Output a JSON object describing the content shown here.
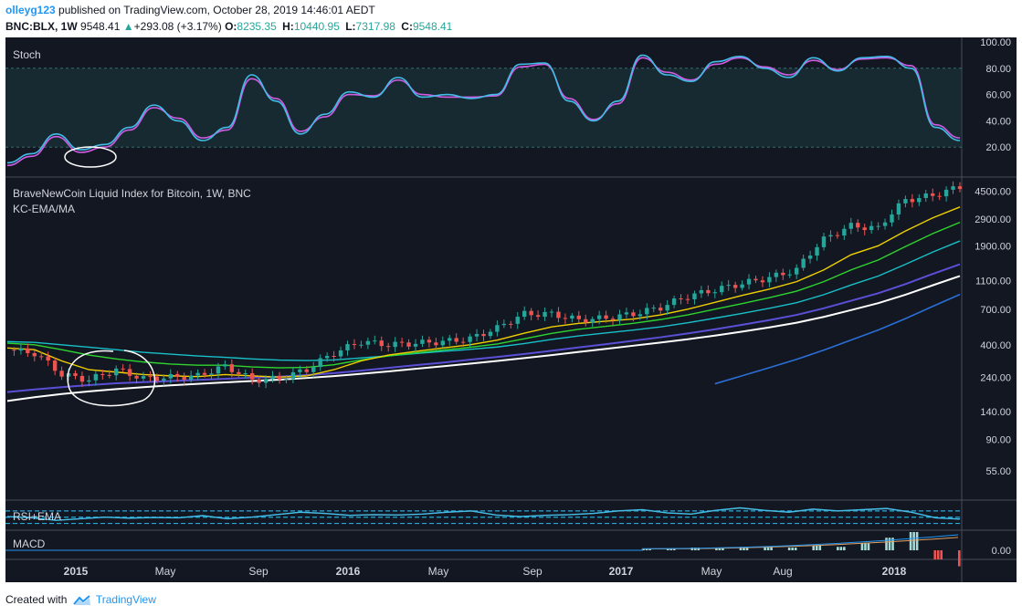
{
  "header": {
    "author": "olleyg123",
    "published_text": "published on TradingView.com, October 28, 2019 14:46:01 AEDT",
    "symbol": "BNC:BLX, 1W",
    "price": "9548.41",
    "change": "+293.08 (+3.17%)",
    "open_label": "O:",
    "open": "8235.35",
    "high_label": "H:",
    "high": "10440.95",
    "low_label": "L:",
    "low": "7317.98",
    "close_label": "C:",
    "close": "9548.41"
  },
  "footer": {
    "created_with": "Created with",
    "brand": "TradingView"
  },
  "colors": {
    "background": "#131722",
    "grid": "#363a45",
    "text": "#d1d4dc",
    "candle_up": "#26a69a",
    "candle_down": "#ef5350",
    "stoch_k": "#42bde8",
    "stoch_d": "#d05ce3",
    "ema_red": "#e53935",
    "ema_yellow": "#f0d000",
    "ema_green": "#2ed52e",
    "ema_teal": "#18c0c8",
    "ma_purple": "#5b4fd6",
    "ma_white": "#ffffff",
    "ma_blue": "#2a6fd6",
    "annotation": "#ffffff"
  },
  "chart_data": [
    {
      "type": "line",
      "pane": "stoch",
      "title": "Stoch",
      "y_axis_ticks": [
        "100.00",
        "80.00",
        "60.00",
        "40.00",
        "20.00"
      ],
      "ylim": [
        0,
        100
      ],
      "bands": [
        20,
        80
      ],
      "x": [
        "Nov 2014",
        "Dec 2014",
        "Jan 2015",
        "Feb 2015",
        "Mar 2015",
        "Apr 2015",
        "May 2015",
        "Jun 2015",
        "Jul 2015",
        "Aug 2015",
        "Sep 2015",
        "Oct 2015",
        "Nov 2015",
        "Dec 2015",
        "Jan 2016",
        "Feb 2016",
        "Mar 2016",
        "Apr 2016",
        "May 2016",
        "Jun 2016",
        "Jul 2016",
        "Aug 2016",
        "Sep 2016",
        "Oct 2016",
        "Nov 2016",
        "Dec 2016",
        "Jan 2017",
        "Feb 2017",
        "Mar 2017",
        "Apr 2017",
        "May 2017",
        "Jun 2017",
        "Jul 2017",
        "Aug 2017",
        "Sep 2017",
        "Oct 2017",
        "Nov 2017",
        "Dec 2017",
        "Jan 2018",
        "Feb 2018"
      ],
      "series": [
        {
          "values": [
            8,
            15,
            30,
            18,
            22,
            35,
            52,
            40,
            25,
            35,
            75,
            55,
            30,
            45,
            62,
            58,
            73,
            58,
            60,
            57,
            60,
            83,
            84,
            55,
            40,
            55,
            90,
            75,
            70,
            85,
            89,
            80,
            73,
            88,
            78,
            88,
            89,
            80,
            35,
            25
          ]
        },
        {
          "values": [
            6,
            13,
            28,
            16,
            20,
            33,
            50,
            42,
            27,
            33,
            72,
            57,
            32,
            43,
            60,
            59,
            71,
            60,
            58,
            58,
            59,
            81,
            83,
            57,
            41,
            53,
            88,
            77,
            71,
            83,
            88,
            81,
            75,
            86,
            79,
            87,
            88,
            82,
            37,
            27
          ]
        }
      ]
    },
    {
      "type": "line",
      "pane": "price",
      "title": "BraveNewCoin Liquid Index for Bitcoin, 1W, BNC",
      "subtitle": "KC-EMA/MA",
      "y_axis_ticks": [
        "4500.00",
        "2900.00",
        "1900.00",
        "1100.00",
        "700.00",
        "400.00",
        "240.00",
        "140.00",
        "90.00",
        "55.00"
      ],
      "scale": "log",
      "ylim": [
        40,
        5000
      ],
      "x": [
        "Nov 2014",
        "Dec 2014",
        "Jan 2015",
        "Feb 2015",
        "Mar 2015",
        "Apr 2015",
        "May 2015",
        "Jun 2015",
        "Jul 2015",
        "Aug 2015",
        "Sep 2015",
        "Oct 2015",
        "Nov 2015",
        "Dec 2015",
        "Jan 2016",
        "Feb 2016",
        "Mar 2016",
        "Apr 2016",
        "May 2016",
        "Jun 2016",
        "Jul 2016",
        "Aug 2016",
        "Sep 2016",
        "Oct 2016",
        "Nov 2016",
        "Dec 2016",
        "Jan 2017",
        "Feb 2017",
        "Mar 2017",
        "Apr 2017",
        "May 2017",
        "Jun 2017",
        "Jul 2017",
        "Aug 2017",
        "Sep 2017",
        "Oct 2017"
      ],
      "series": [
        {
          "values": [
            370,
            350,
            250,
            230,
            270,
            235,
            240,
            245,
            285,
            230,
            235,
            270,
            350,
            420,
            400,
            410,
            420,
            440,
            520,
            650,
            650,
            590,
            610,
            650,
            720,
            860,
            950,
            1050,
            1150,
            1300,
            2100,
            2600,
            2500,
            3900,
            4200,
            4800
          ]
        },
        {
          "values": [
            380,
            370,
            310,
            270,
            260,
            250,
            245,
            242,
            250,
            245,
            240,
            245,
            270,
            310,
            340,
            360,
            380,
            400,
            430,
            480,
            530,
            560,
            580,
            600,
            640,
            700,
            780,
            870,
            960,
            1080,
            1300,
            1650,
            1900,
            2400,
            2950,
            3500
          ]
        },
        {
          "values": [
            410,
            400,
            370,
            340,
            320,
            305,
            295,
            290,
            290,
            282,
            278,
            280,
            292,
            315,
            335,
            352,
            368,
            384,
            405,
            440,
            478,
            510,
            535,
            560,
            595,
            640,
            700,
            765,
            840,
            930,
            1080,
            1300,
            1520,
            1880,
            2300,
            2750
          ]
        },
        {
          "values": [
            420,
            415,
            400,
            385,
            370,
            355,
            345,
            335,
            328,
            320,
            314,
            312,
            315,
            325,
            336,
            348,
            360,
            372,
            386,
            408,
            435,
            460,
            482,
            504,
            530,
            565,
            608,
            655,
            710,
            776,
            880,
            1025,
            1180,
            1420,
            1720,
            2050
          ]
        },
        {
          "values": [
            190,
            198,
            205,
            212,
            218,
            222,
            226,
            230,
            234,
            238,
            242,
            248,
            256,
            266,
            278,
            290,
            302,
            316,
            330,
            346,
            364,
            384,
            404,
            426,
            450,
            478,
            510,
            548,
            590,
            640,
            710,
            800,
            900,
            1040,
            1220,
            1420
          ]
        },
        {
          "values": [
            165,
            175,
            184,
            192,
            199,
            205,
            211,
            216,
            221,
            226,
            231,
            237,
            244,
            253,
            263,
            274,
            285,
            297,
            310,
            324,
            340,
            357,
            375,
            394,
            414,
            436,
            462,
            492,
            526,
            566,
            620,
            690,
            770,
            880,
            1020,
            1180
          ]
        }
      ]
    },
    {
      "type": "line",
      "pane": "rsi",
      "title": "RSI+EMA",
      "series": [
        {
          "values": [
            52,
            48,
            40,
            45,
            50,
            47,
            49,
            48,
            55,
            45,
            50,
            58,
            66,
            62,
            56,
            58,
            57,
            60,
            66,
            70,
            57,
            52,
            56,
            58,
            62,
            70,
            74,
            64,
            60,
            72,
            80,
            72,
            66,
            76,
            70,
            74,
            78,
            66,
            48,
            44
          ]
        }
      ]
    },
    {
      "type": "bar",
      "pane": "macd",
      "title": "MACD",
      "y_axis_ticks": [
        "0.00"
      ],
      "x": [
        "Jan 2017",
        "Feb 2017",
        "Mar 2017",
        "Apr 2017",
        "May 2017",
        "Jun 2017",
        "Jul 2017",
        "Aug 2017",
        "Sep 2017",
        "Oct 2017",
        "Nov 2017",
        "Dec 2017",
        "Jan 2018",
        "Feb 2018"
      ],
      "values": [
        5,
        8,
        12,
        10,
        15,
        18,
        12,
        20,
        15,
        30,
        55,
        80,
        -40,
        -70
      ]
    }
  ],
  "x_axis_ticks": [
    "2015",
    "May",
    "Sep",
    "2016",
    "May",
    "Sep",
    "2017",
    "May",
    "Aug",
    "2018"
  ]
}
